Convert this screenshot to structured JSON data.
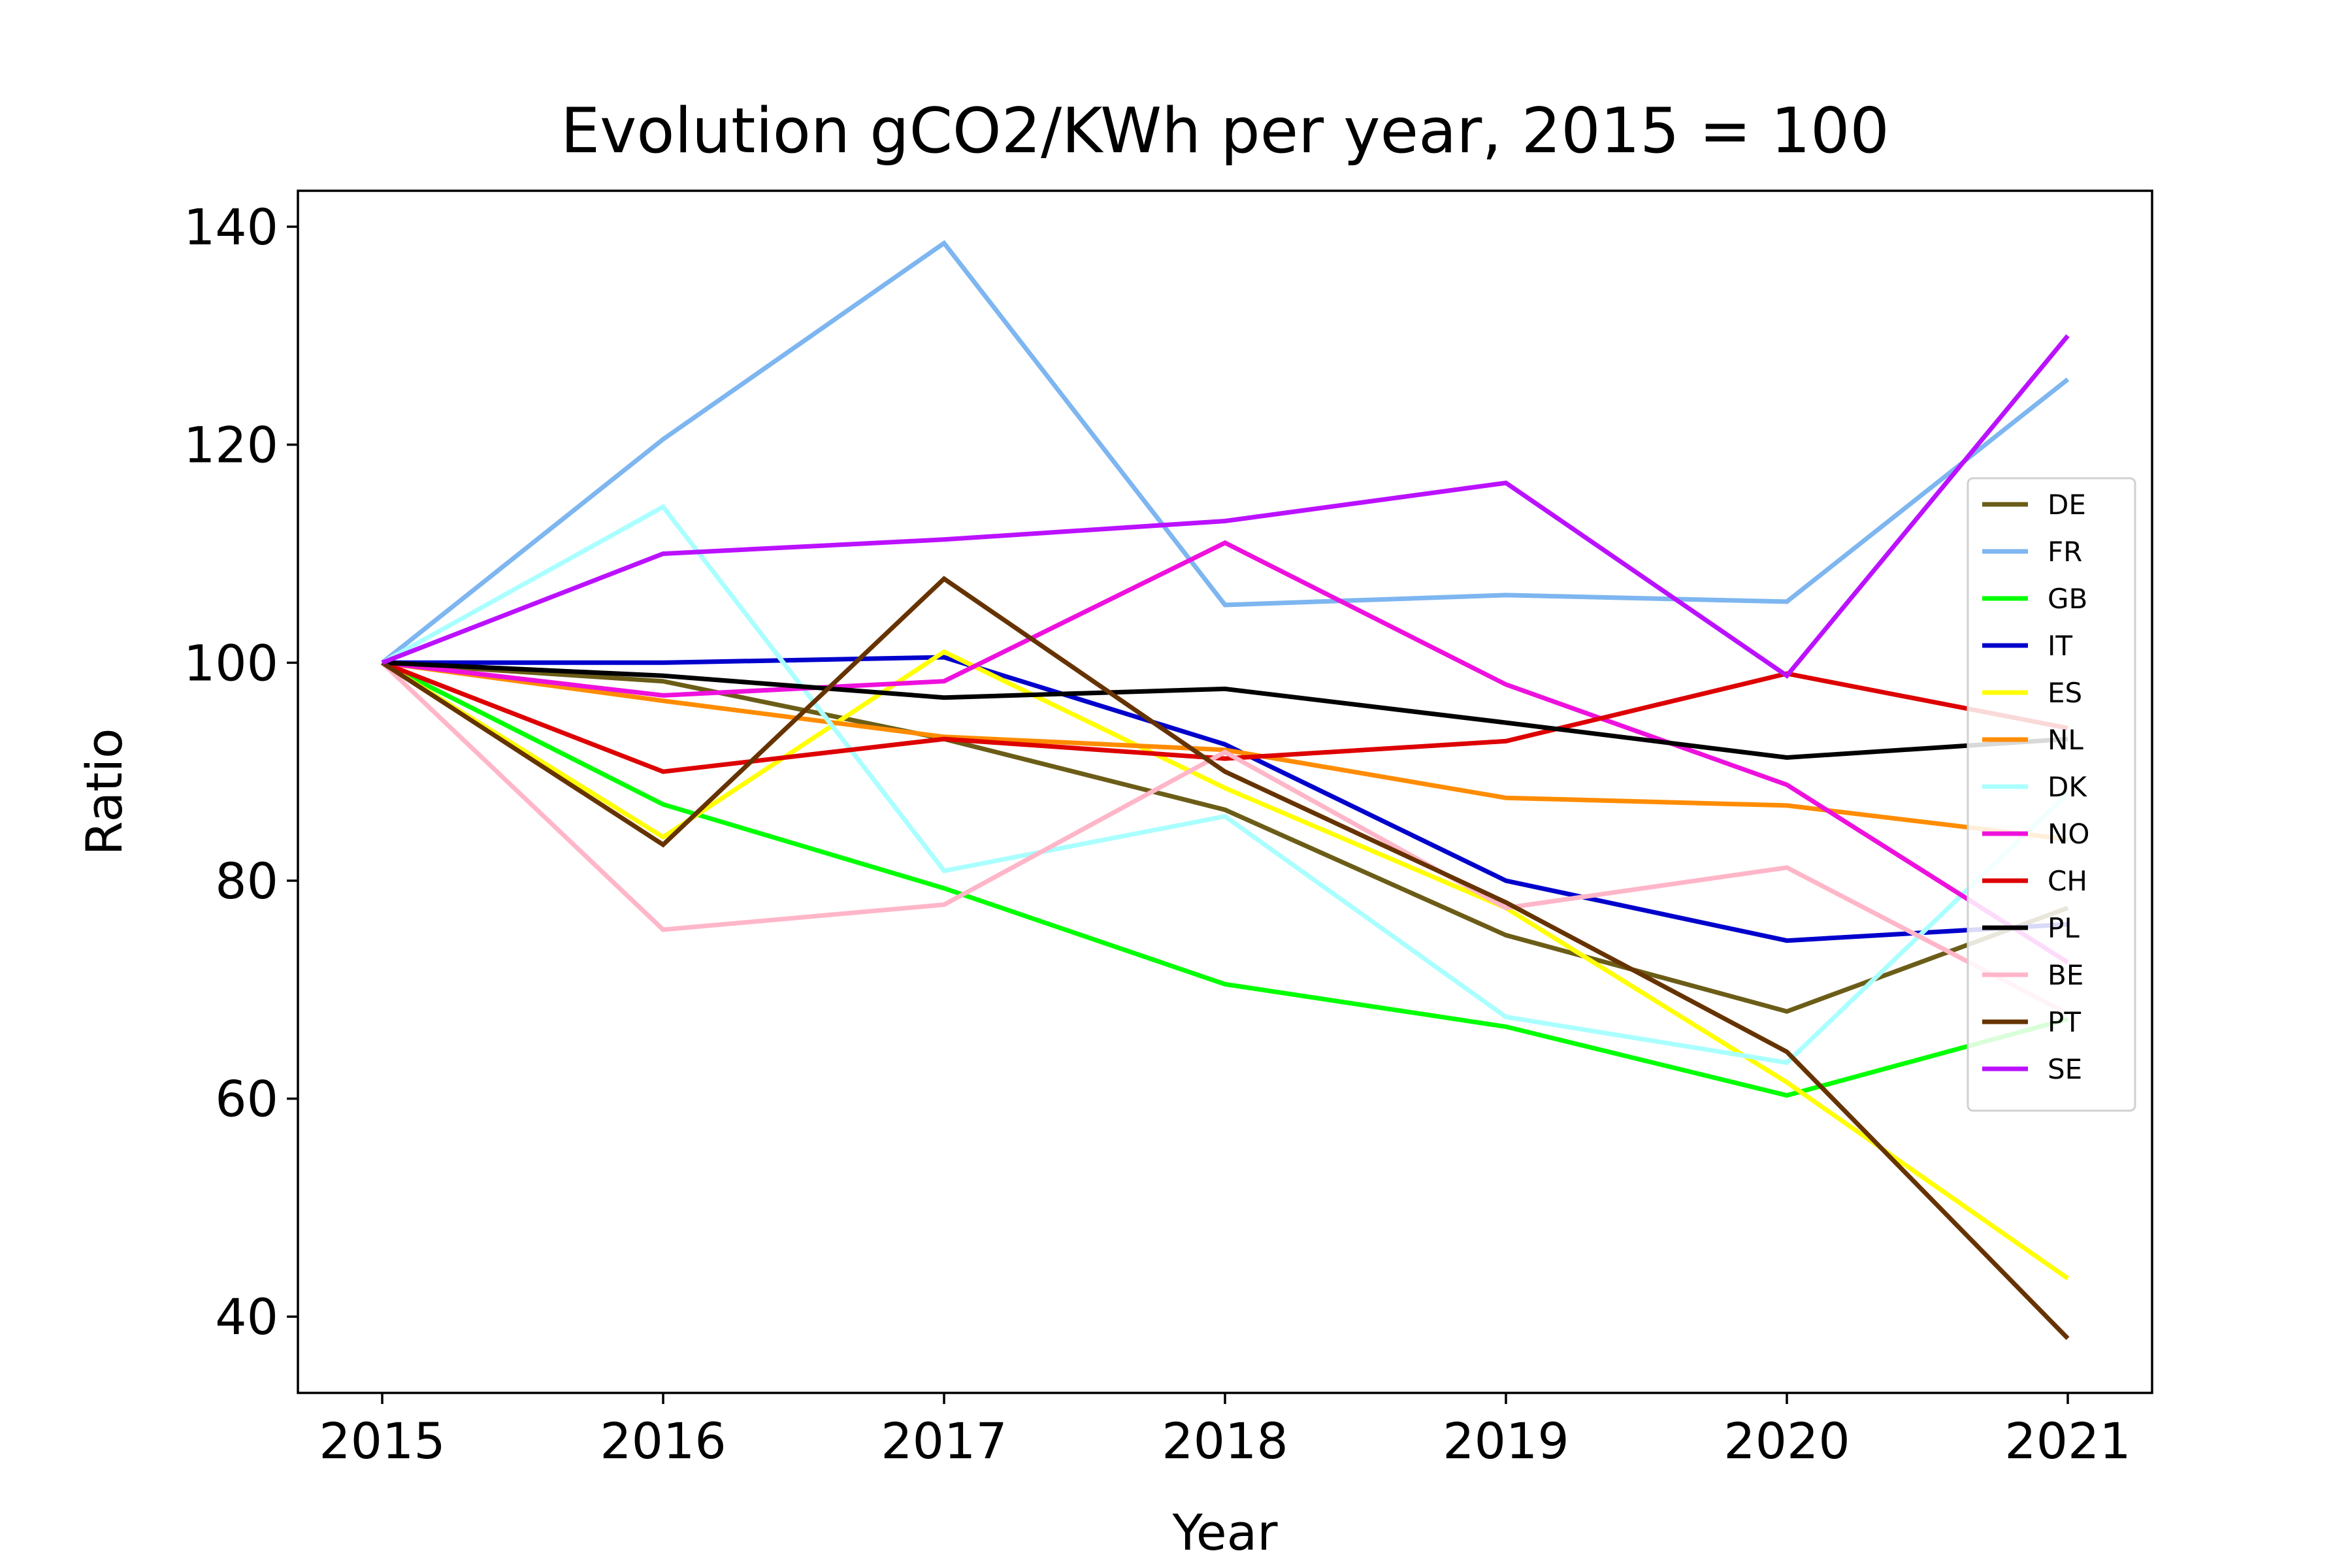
{
  "chart_data": {
    "type": "line",
    "title": "Evolution gCO2/KWh per year, 2015 = 100",
    "xlabel": "Year",
    "ylabel": "Ratio",
    "x": [
      2015,
      2016,
      2017,
      2018,
      2019,
      2020,
      2021
    ],
    "x_tick_labels": [
      "2015",
      "2016",
      "2017",
      "2018",
      "2019",
      "2020",
      "2021"
    ],
    "y_ticks": [
      40,
      60,
      80,
      100,
      120,
      140
    ],
    "y_tick_labels": [
      "40",
      "60",
      "80",
      "100",
      "120",
      "140"
    ],
    "xlim": [
      2014.7,
      2021.3
    ],
    "ylim": [
      33,
      143.3
    ],
    "grid": false,
    "legend_position": "right",
    "series": [
      {
        "name": "DE",
        "color": "#6b5d17",
        "values": [
          100,
          98.3,
          93,
          86.5,
          75,
          68,
          77.5
        ]
      },
      {
        "name": "FR",
        "color": "#7db6f0",
        "values": [
          100,
          120.5,
          138.5,
          105.3,
          106.2,
          105.6,
          126
        ]
      },
      {
        "name": "GB",
        "color": "#00ff00",
        "values": [
          100,
          87,
          79.3,
          70.5,
          66.6,
          60.3,
          67.3
        ]
      },
      {
        "name": "IT",
        "color": "#0000cc",
        "values": [
          100,
          100,
          100.5,
          92.5,
          80,
          74.5,
          76
        ]
      },
      {
        "name": "ES",
        "color": "#ffff00",
        "values": [
          100,
          84,
          101,
          88.5,
          77.5,
          61.5,
          43.5
        ]
      },
      {
        "name": "NL",
        "color": "#ff8c00",
        "values": [
          100,
          96.5,
          93.2,
          92,
          87.6,
          86.9,
          83.8
        ]
      },
      {
        "name": "DK",
        "color": "#aaffff",
        "values": [
          100,
          114.3,
          80.9,
          85.9,
          67.5,
          63.3,
          88
        ]
      },
      {
        "name": "NO",
        "color": "#ee11dd",
        "values": [
          100,
          97,
          98.3,
          111,
          98,
          88.8,
          72.5
        ]
      },
      {
        "name": "CH",
        "color": "#dd0000",
        "values": [
          100,
          90,
          93,
          91.2,
          92.8,
          99,
          94
        ]
      },
      {
        "name": "PL",
        "color": "#000000",
        "values": [
          100,
          98.8,
          96.8,
          97.6,
          94.5,
          91.3,
          93
        ]
      },
      {
        "name": "BE",
        "color": "#ffb6c8",
        "values": [
          100,
          75.5,
          77.8,
          91.8,
          77.5,
          81.2,
          67.8
        ]
      },
      {
        "name": "PT",
        "color": "#663300",
        "values": [
          100,
          83.3,
          107.7,
          90,
          78,
          64.3,
          38
        ]
      },
      {
        "name": "SE",
        "color": "#bb11ff",
        "values": [
          100,
          110,
          111.3,
          113,
          116.5,
          98.8,
          130
        ]
      }
    ]
  }
}
